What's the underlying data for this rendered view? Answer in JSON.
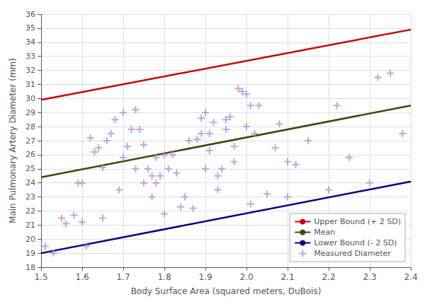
{
  "chart_data": {
    "type": "line",
    "xlabel": "Body Surface Area (squared meters, DuBois)",
    "ylabel": "Main Pulmonary Artery Diameter (mm)",
    "xlim": [
      1.5,
      2.4
    ],
    "ylim": [
      18,
      36
    ],
    "xticks": [
      1.5,
      1.6,
      1.7,
      1.8,
      1.9,
      {
        "value": 2.0,
        "label": "2.0"
      },
      2.1,
      2.2,
      2.3,
      2.4
    ],
    "yticks": [
      18,
      19,
      20,
      21,
      22,
      23,
      24,
      25,
      26,
      27,
      28,
      29,
      30,
      31,
      32,
      33,
      34,
      35,
      36
    ],
    "grid": true,
    "legend": "lower right",
    "series": [
      {
        "name": "Upper Bound (+ 2 SD)",
        "type": "line",
        "color": "#cc0000",
        "line_style": "solid",
        "x": [
          1.5,
          2.4
        ],
        "values": [
          29.9,
          34.9
        ]
      },
      {
        "name": "Mean",
        "type": "line",
        "color": "#3d4a00",
        "line_style": "solid",
        "x": [
          1.5,
          2.4
        ],
        "values": [
          24.4,
          29.5
        ]
      },
      {
        "name": "Lower Bound (- 2 SD)",
        "type": "line",
        "color": "#00008b",
        "line_style": "solid",
        "x": [
          1.5,
          2.4
        ],
        "values": [
          19.0,
          24.1
        ]
      },
      {
        "name": "Measured Diameter",
        "type": "scatter",
        "color": "#b090d0",
        "marker": "plus",
        "x": [
          1.51,
          1.53,
          1.55,
          1.56,
          1.58,
          1.59,
          1.6,
          1.6,
          1.61,
          1.62,
          1.63,
          1.64,
          1.65,
          1.65,
          1.66,
          1.67,
          1.68,
          1.69,
          1.7,
          1.7,
          1.71,
          1.72,
          1.73,
          1.73,
          1.74,
          1.75,
          1.75,
          1.76,
          1.77,
          1.77,
          1.78,
          1.78,
          1.79,
          1.8,
          1.8,
          1.81,
          1.82,
          1.83,
          1.84,
          1.85,
          1.86,
          1.87,
          1.88,
          1.89,
          1.89,
          1.9,
          1.9,
          1.91,
          1.91,
          1.92,
          1.93,
          1.93,
          1.94,
          1.95,
          1.95,
          1.96,
          1.97,
          1.97,
          1.98,
          1.99,
          2.0,
          2.0,
          2.01,
          2.01,
          2.02,
          2.03,
          2.05,
          2.07,
          2.08,
          2.1,
          2.1,
          2.12,
          2.15,
          2.2,
          2.22,
          2.25,
          2.3,
          2.32,
          2.35,
          2.38
        ],
        "values": [
          19.5,
          19.0,
          21.5,
          21.1,
          21.7,
          24.0,
          24.0,
          21.2,
          19.5,
          27.2,
          26.2,
          26.5,
          25.1,
          21.5,
          27.0,
          27.5,
          28.5,
          23.5,
          29.0,
          25.8,
          26.6,
          27.8,
          29.2,
          25.0,
          27.8,
          24.0,
          26.7,
          25.0,
          24.5,
          23.0,
          25.8,
          24.0,
          24.5,
          26.0,
          21.8,
          25.0,
          26.0,
          24.7,
          22.3,
          23.0,
          27.0,
          22.2,
          27.1,
          28.6,
          27.5,
          29.0,
          25.0,
          27.5,
          26.3,
          28.3,
          24.5,
          23.5,
          25.0,
          28.5,
          27.8,
          28.7,
          26.6,
          25.5,
          30.7,
          30.5,
          28.0,
          30.3,
          29.5,
          22.5,
          27.5,
          29.5,
          23.2,
          26.5,
          28.2,
          23.0,
          25.5,
          25.3,
          27.0,
          23.5,
          29.5,
          25.8,
          24.0,
          31.5,
          31.8,
          27.5
        ]
      }
    ]
  }
}
